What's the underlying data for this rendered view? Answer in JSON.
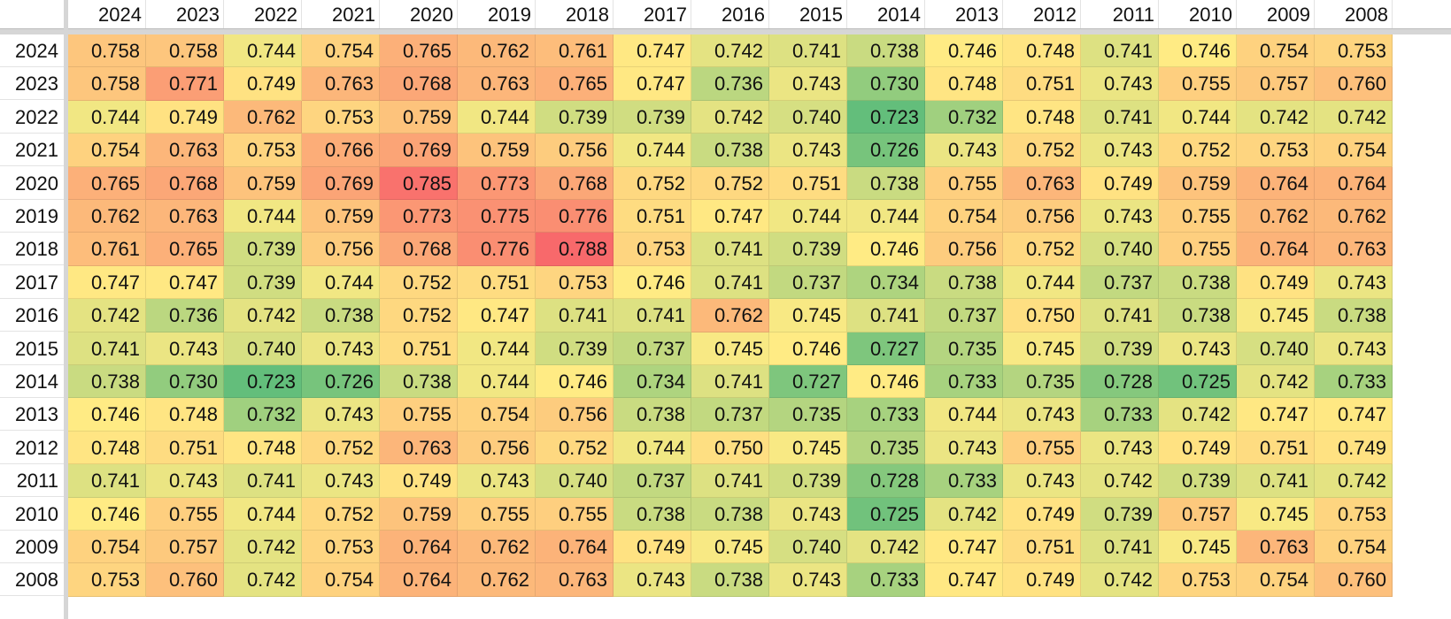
{
  "heatmap": {
    "col_headers": [
      "2024",
      "2023",
      "2022",
      "2021",
      "2020",
      "2019",
      "2018",
      "2017",
      "2016",
      "2015",
      "2014",
      "2013",
      "2012",
      "2011",
      "2010",
      "2009",
      "2008"
    ],
    "row_headers": [
      "2024",
      "2023",
      "2022",
      "2021",
      "2020",
      "2019",
      "2018",
      "2017",
      "2016",
      "2015",
      "2014",
      "2013",
      "2012",
      "2011",
      "2010",
      "2009",
      "2008"
    ],
    "rows": [
      [
        "0.758",
        "0.758",
        "0.744",
        "0.754",
        "0.765",
        "0.762",
        "0.761",
        "0.747",
        "0.742",
        "0.741",
        "0.738",
        "0.746",
        "0.748",
        "0.741",
        "0.746",
        "0.754",
        "0.753"
      ],
      [
        "0.758",
        "0.771",
        "0.749",
        "0.763",
        "0.768",
        "0.763",
        "0.765",
        "0.747",
        "0.736",
        "0.743",
        "0.730",
        "0.748",
        "0.751",
        "0.743",
        "0.755",
        "0.757",
        "0.760"
      ],
      [
        "0.744",
        "0.749",
        "0.762",
        "0.753",
        "0.759",
        "0.744",
        "0.739",
        "0.739",
        "0.742",
        "0.740",
        "0.723",
        "0.732",
        "0.748",
        "0.741",
        "0.744",
        "0.742",
        "0.742"
      ],
      [
        "0.754",
        "0.763",
        "0.753",
        "0.766",
        "0.769",
        "0.759",
        "0.756",
        "0.744",
        "0.738",
        "0.743",
        "0.726",
        "0.743",
        "0.752",
        "0.743",
        "0.752",
        "0.753",
        "0.754"
      ],
      [
        "0.765",
        "0.768",
        "0.759",
        "0.769",
        "0.785",
        "0.773",
        "0.768",
        "0.752",
        "0.752",
        "0.751",
        "0.738",
        "0.755",
        "0.763",
        "0.749",
        "0.759",
        "0.764",
        "0.764"
      ],
      [
        "0.762",
        "0.763",
        "0.744",
        "0.759",
        "0.773",
        "0.775",
        "0.776",
        "0.751",
        "0.747",
        "0.744",
        "0.744",
        "0.754",
        "0.756",
        "0.743",
        "0.755",
        "0.762",
        "0.762"
      ],
      [
        "0.761",
        "0.765",
        "0.739",
        "0.756",
        "0.768",
        "0.776",
        "0.788",
        "0.753",
        "0.741",
        "0.739",
        "0.746",
        "0.756",
        "0.752",
        "0.740",
        "0.755",
        "0.764",
        "0.763"
      ],
      [
        "0.747",
        "0.747",
        "0.739",
        "0.744",
        "0.752",
        "0.751",
        "0.753",
        "0.746",
        "0.741",
        "0.737",
        "0.734",
        "0.738",
        "0.744",
        "0.737",
        "0.738",
        "0.749",
        "0.743"
      ],
      [
        "0.742",
        "0.736",
        "0.742",
        "0.738",
        "0.752",
        "0.747",
        "0.741",
        "0.741",
        "0.762",
        "0.745",
        "0.741",
        "0.737",
        "0.750",
        "0.741",
        "0.738",
        "0.745",
        "0.738"
      ],
      [
        "0.741",
        "0.743",
        "0.740",
        "0.743",
        "0.751",
        "0.744",
        "0.739",
        "0.737",
        "0.745",
        "0.746",
        "0.727",
        "0.735",
        "0.745",
        "0.739",
        "0.743",
        "0.740",
        "0.743"
      ],
      [
        "0.738",
        "0.730",
        "0.723",
        "0.726",
        "0.738",
        "0.744",
        "0.746",
        "0.734",
        "0.741",
        "0.727",
        "0.746",
        "0.733",
        "0.735",
        "0.728",
        "0.725",
        "0.742",
        "0.733"
      ],
      [
        "0.746",
        "0.748",
        "0.732",
        "0.743",
        "0.755",
        "0.754",
        "0.756",
        "0.738",
        "0.737",
        "0.735",
        "0.733",
        "0.744",
        "0.743",
        "0.733",
        "0.742",
        "0.747",
        "0.747"
      ],
      [
        "0.748",
        "0.751",
        "0.748",
        "0.752",
        "0.763",
        "0.756",
        "0.752",
        "0.744",
        "0.750",
        "0.745",
        "0.735",
        "0.743",
        "0.755",
        "0.743",
        "0.749",
        "0.751",
        "0.749"
      ],
      [
        "0.741",
        "0.743",
        "0.741",
        "0.743",
        "0.749",
        "0.743",
        "0.740",
        "0.737",
        "0.741",
        "0.739",
        "0.728",
        "0.733",
        "0.743",
        "0.742",
        "0.739",
        "0.741",
        "0.742"
      ],
      [
        "0.746",
        "0.755",
        "0.744",
        "0.752",
        "0.759",
        "0.755",
        "0.755",
        "0.738",
        "0.738",
        "0.743",
        "0.725",
        "0.742",
        "0.749",
        "0.739",
        "0.757",
        "0.745",
        "0.753"
      ],
      [
        "0.754",
        "0.757",
        "0.742",
        "0.753",
        "0.764",
        "0.762",
        "0.764",
        "0.749",
        "0.745",
        "0.740",
        "0.742",
        "0.747",
        "0.751",
        "0.741",
        "0.745",
        "0.763",
        "0.754"
      ],
      [
        "0.753",
        "0.760",
        "0.742",
        "0.754",
        "0.764",
        "0.762",
        "0.763",
        "0.743",
        "0.738",
        "0.743",
        "0.733",
        "0.747",
        "0.749",
        "0.742",
        "0.753",
        "0.754",
        "0.760"
      ]
    ],
    "color_scale": {
      "min_color": "#63be7b",
      "mid_color": "#ffeb84",
      "max_color": "#f8696b"
    }
  }
}
